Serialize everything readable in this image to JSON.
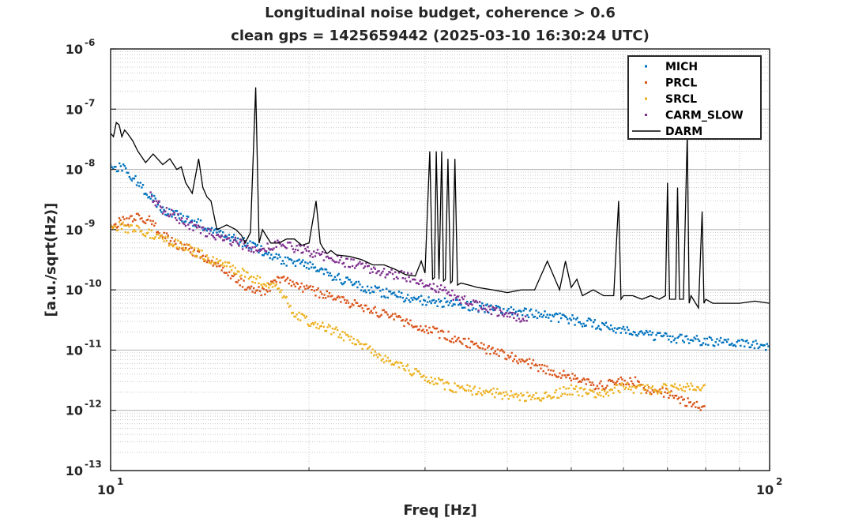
{
  "chart_data": {
    "type": "scatter",
    "title": "Longitudinal noise budget, coherence > 0.6",
    "subtitle": "clean gps = 1425659442 (2025-03-10 16:30:24 UTC)",
    "xlabel": "Freq [Hz]",
    "ylabel": "[a.u./sqrt(Hz)]",
    "xscale": "log",
    "yscale": "log",
    "xlim": [
      10,
      100
    ],
    "ylim": [
      1e-13,
      1e-06
    ],
    "grid": true,
    "legend_position": "top-right",
    "x_ticks": [
      {
        "value": 10,
        "base": "10",
        "exp": "1"
      },
      {
        "value": 100,
        "base": "10",
        "exp": "2"
      }
    ],
    "y_ticks": [
      {
        "value": 1e-06,
        "base": "10",
        "exp": "-6"
      },
      {
        "value": 1e-07,
        "base": "10",
        "exp": "-7"
      },
      {
        "value": 1e-08,
        "base": "10",
        "exp": "-8"
      },
      {
        "value": 1e-09,
        "base": "10",
        "exp": "-9"
      },
      {
        "value": 1e-10,
        "base": "10",
        "exp": "-10"
      },
      {
        "value": 1e-11,
        "base": "10",
        "exp": "-11"
      },
      {
        "value": 1e-12,
        "base": "10",
        "exp": "-12"
      },
      {
        "value": 1e-13,
        "base": "10",
        "exp": "-13"
      }
    ],
    "series": [
      {
        "name": "MICH",
        "style": "dots",
        "color": "#0072BD",
        "x": [
          10.0,
          10.5,
          11.0,
          11.5,
          12.0,
          12.5,
          13.0,
          14.0,
          15.0,
          16.0,
          17.0,
          18.0,
          19.0,
          20.0,
          22.0,
          24.0,
          26.0,
          28.0,
          30.0,
          33.0,
          36.0,
          40.0,
          45.0,
          50.0,
          55.0,
          60.0,
          65.0,
          70.0,
          80.0,
          90.0,
          100.0
        ],
        "y": [
          1.2e-08,
          1e-08,
          6e-09,
          3.5e-09,
          2.2e-09,
          1.8e-09,
          1.5e-09,
          1.1e-09,
          8e-10,
          6e-10,
          4.5e-10,
          3.2e-10,
          2.8e-10,
          2.5e-10,
          1.6e-10,
          1.1e-10,
          9e-11,
          7.5e-11,
          6.5e-11,
          6e-11,
          5.2e-11,
          4.5e-11,
          3.8e-11,
          3.2e-11,
          2.6e-11,
          2.2e-11,
          1.8e-11,
          1.6e-11,
          1.4e-11,
          1.25e-11,
          1.2e-11
        ]
      },
      {
        "name": "PRCL",
        "style": "dots",
        "color": "#D95319",
        "x": [
          10.0,
          11.0,
          11.5,
          12.0,
          12.5,
          13.0,
          13.5,
          14.0,
          15.0,
          15.5,
          16.0,
          17.0,
          18.0,
          50.0,
          55.0,
          60.0,
          62.0,
          65.0,
          70.0,
          80.0
        ],
        "y": [
          1.2e-09,
          1.6e-09,
          1.4e-09,
          8e-10,
          6e-10,
          5e-10,
          4e-10,
          3.3e-10,
          2e-10,
          1.5e-10,
          1.2e-10,
          9e-11,
          1.5e-10,
          3.5e-12,
          2.5e-12,
          3e-12,
          3.2e-12,
          2.2e-12,
          1.9e-12,
          1e-12
        ]
      },
      {
        "name": "SRCL",
        "style": "dots",
        "color": "#EDB120",
        "x": [
          10.0,
          11.0,
          12.0,
          13.0,
          14.0,
          15.0,
          16.0,
          17.0,
          18.0,
          19.0,
          20.0,
          22.0,
          24.0,
          26.0,
          28.0,
          30.0,
          33.0,
          36.0,
          40.0,
          45.0,
          50.0,
          55.0,
          60.0,
          65.0,
          70.0,
          75.0,
          80.0
        ],
        "y": [
          1.2e-09,
          1e-09,
          7e-10,
          5e-10,
          3.5e-10,
          2.5e-10,
          1.8e-10,
          1.3e-10,
          1.1e-10,
          4e-11,
          3e-11,
          2e-11,
          1.2e-11,
          7e-12,
          5e-12,
          3.5e-12,
          2.4e-12,
          2.1e-12,
          1.8e-12,
          1.6e-12,
          2.2e-12,
          1.8e-12,
          2.4e-12,
          2.2e-12,
          2.3e-12,
          2.5e-12,
          2.4e-12
        ]
      },
      {
        "name": "CARM_SLOW",
        "style": "dots",
        "color": "#7E2F8E",
        "x": [
          11.5,
          12.0,
          13.0,
          14.0,
          15.0,
          16.0,
          17.0,
          18.0,
          19.0,
          20.0,
          22.0,
          24.0,
          26.0,
          28.0,
          30.0,
          32.0,
          34.0,
          36.0,
          38.0,
          40.0,
          43.0
        ],
        "y": [
          3.5e-09,
          2.2e-09,
          1.3e-09,
          9e-10,
          7e-10,
          5.5e-10,
          4.5e-10,
          6e-10,
          5e-10,
          4.3e-10,
          3.1e-10,
          2.5e-10,
          1.9e-10,
          1.7e-10,
          1.3e-10,
          1e-10,
          7e-11,
          5.5e-11,
          4.5e-11,
          3.6e-11,
          3.2e-11
        ]
      },
      {
        "name": "DARM",
        "style": "line",
        "color": "#000000",
        "x": [
          10.0,
          10.1,
          10.2,
          10.3,
          10.4,
          10.5,
          10.6,
          10.8,
          11.0,
          11.3,
          11.6,
          12.0,
          12.3,
          12.6,
          12.8,
          13.0,
          13.3,
          13.6,
          13.8,
          14.0,
          14.2,
          14.5,
          15.0,
          15.5,
          15.8,
          16.0,
          16.3,
          16.6,
          16.8,
          17.0,
          17.5,
          18.0,
          18.5,
          19.0,
          19.5,
          20.0,
          20.5,
          20.8,
          21.0,
          21.3,
          21.6,
          22.0,
          23.0,
          24.0,
          25.0,
          26.0,
          27.0,
          28.0,
          29.0,
          29.6,
          30.0,
          30.5,
          30.8,
          31.0,
          31.2,
          31.5,
          31.8,
          32.0,
          32.2,
          32.5,
          32.8,
          33.0,
          33.3,
          33.6,
          34.0,
          35.0,
          36.0,
          38.0,
          40.0,
          42.0,
          44.0,
          46.0,
          48.0,
          49.0,
          50.0,
          51.0,
          52.0,
          54.0,
          56.0,
          58.0,
          59.0,
          59.5,
          60.0,
          62.0,
          64.0,
          66.0,
          68.0,
          69.5,
          70.0,
          70.5,
          72.0,
          72.5,
          73.0,
          74.0,
          75.0,
          75.5,
          76.0,
          78.0,
          79.0,
          79.5,
          80.0,
          82.0,
          85.0,
          90.0,
          95.0,
          100.0
        ],
        "y": [
          4e-08,
          3.5e-08,
          6e-08,
          5.5e-08,
          3.5e-08,
          4.5e-08,
          4e-08,
          3e-08,
          2e-08,
          1.3e-08,
          1.8e-08,
          1.2e-08,
          1.5e-08,
          1e-08,
          1.1e-08,
          6e-09,
          4e-09,
          1.5e-08,
          5e-09,
          3.5e-09,
          3e-09,
          1e-09,
          1.2e-09,
          1e-09,
          8e-10,
          6e-10,
          9e-10,
          2.3e-07,
          6e-10,
          1e-09,
          6e-10,
          6e-10,
          7e-10,
          7e-10,
          5.5e-10,
          6e-10,
          3e-09,
          6e-10,
          5e-10,
          4e-10,
          4.5e-10,
          3.8e-10,
          3.6e-10,
          3.2e-10,
          2.6e-10,
          2.6e-10,
          2.2e-10,
          1.8e-10,
          1.7e-10,
          3e-10,
          1.9e-10,
          2e-08,
          1.5e-10,
          1.6e-10,
          2e-08,
          1.5e-10,
          2e-08,
          1.4e-10,
          1.5e-10,
          1.5e-08,
          1.3e-10,
          1.4e-10,
          1.5e-08,
          1.2e-10,
          1.3e-10,
          1.2e-10,
          1.1e-10,
          1e-10,
          9e-11,
          1e-10,
          1e-10,
          3e-10,
          1e-10,
          3e-10,
          1.1e-10,
          1.5e-10,
          8e-11,
          1e-10,
          8e-11,
          8e-11,
          3e-09,
          7e-11,
          8e-11,
          8e-11,
          7e-11,
          8e-11,
          7e-11,
          8e-11,
          6e-09,
          7e-11,
          7e-11,
          5e-09,
          7e-11,
          7e-11,
          4e-08,
          6e-11,
          8e-11,
          5e-11,
          2e-09,
          6e-11,
          7e-11,
          6e-11,
          6e-11,
          6e-11,
          6.5e-11,
          6e-11
        ]
      }
    ]
  }
}
